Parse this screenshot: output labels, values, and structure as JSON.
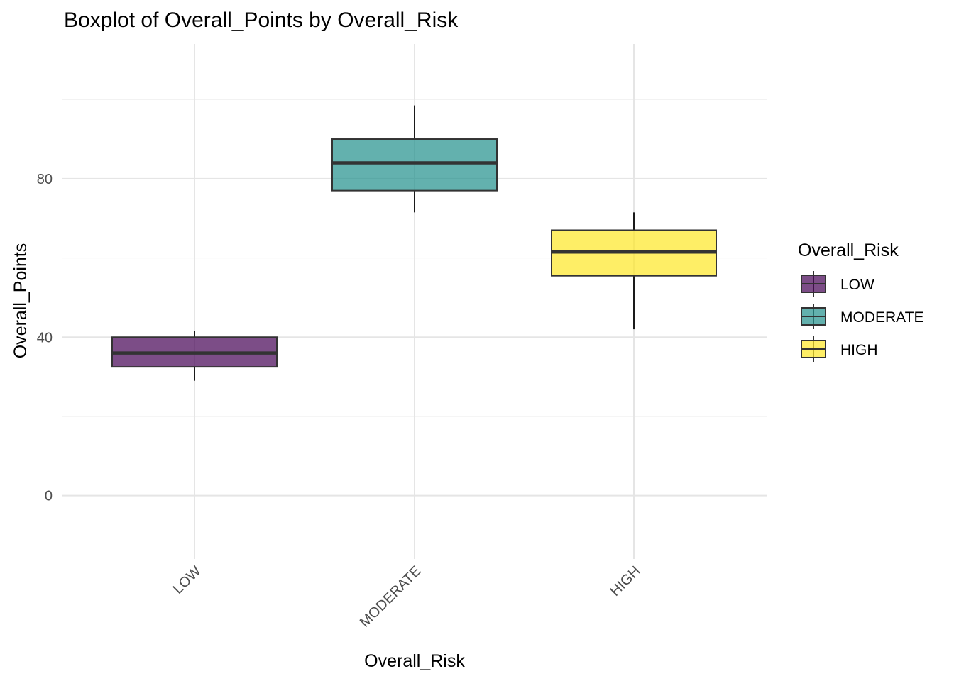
{
  "chart_data": {
    "type": "boxplot",
    "title": "Boxplot of Overall_Points by Overall_Risk",
    "xlabel": "Overall_Risk",
    "ylabel": "Overall_Points",
    "ylim": [
      -16,
      114
    ],
    "y_ticks": [
      0,
      40,
      80
    ],
    "y_minor_grid": [
      20,
      60,
      100
    ],
    "grid": true,
    "categories": [
      "LOW",
      "MODERATE",
      "HIGH"
    ],
    "boxes": [
      {
        "category": "LOW",
        "whisker_low": 29,
        "q1": 32.5,
        "median": 36,
        "q3": 40,
        "whisker_high": 41.5,
        "color": "#440154"
      },
      {
        "category": "MODERATE",
        "whisker_low": 71.5,
        "q1": 77,
        "median": 84,
        "q3": 90,
        "whisker_high": 98.5,
        "color": "#21908C"
      },
      {
        "category": "HIGH",
        "whisker_low": 42,
        "q1": 55.5,
        "median": 61.5,
        "q3": 67,
        "whisker_high": 71.5,
        "color": "#FDE725"
      }
    ],
    "legend": {
      "title": "Overall_Risk",
      "position": "right",
      "entries": [
        "LOW",
        "MODERATE",
        "HIGH"
      ]
    }
  }
}
